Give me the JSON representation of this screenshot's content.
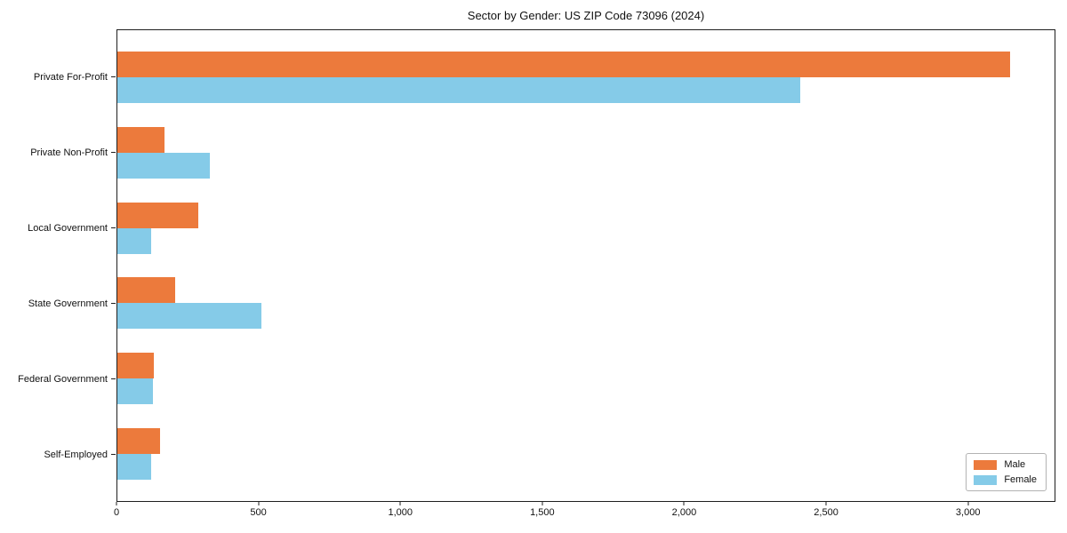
{
  "chart_data": {
    "type": "bar",
    "orientation": "horizontal",
    "title": "Sector by Gender: US ZIP Code 73096 (2024)",
    "categories": [
      "Private For-Profit",
      "Private Non-Profit",
      "Local Government",
      "State Government",
      "Federal Government",
      "Self-Employed"
    ],
    "series": [
      {
        "name": "Male",
        "color": "#ec7a3c",
        "values": [
          3150,
          165,
          285,
          205,
          130,
          150
        ]
      },
      {
        "name": "Female",
        "color": "#85cbe8",
        "values": [
          2410,
          325,
          120,
          510,
          125,
          120
        ]
      }
    ],
    "xlabel": "",
    "ylabel": "",
    "xlim": [
      0,
      3308
    ],
    "xticks": {
      "values": [
        0,
        500,
        1000,
        1500,
        2000,
        2500,
        3000
      ],
      "labels": [
        "0",
        "500",
        "1,000",
        "1,500",
        "2,000",
        "2,500",
        "3,000"
      ]
    },
    "grid": false,
    "legend_position": "lower right",
    "spine_color": "#1f1f1f"
  },
  "legend": {
    "items": [
      {
        "label": "Male",
        "color": "#ec7a3c"
      },
      {
        "label": "Female",
        "color": "#85cbe8"
      }
    ]
  }
}
